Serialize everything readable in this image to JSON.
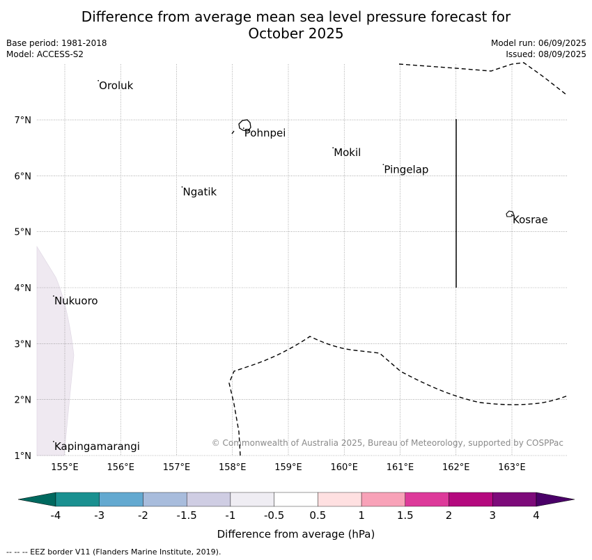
{
  "title_line1": "Difference from average mean sea level pressure forecast for",
  "title_line2": "October 2025",
  "meta": {
    "base_period": "Base period: 1981-2018",
    "model": "Model: ACCESS-S2",
    "model_run": "Model run: 06/09/2025",
    "issued": "Issued: 08/09/2025"
  },
  "map": {
    "lon_ticks": [
      "155°E",
      "156°E",
      "157°E",
      "158°E",
      "159°E",
      "160°E",
      "161°E",
      "162°E",
      "163°E"
    ],
    "lat_ticks": [
      "7°N",
      "6°N",
      "5°N",
      "4°N",
      "3°N",
      "2°N",
      "1°N"
    ],
    "places": [
      {
        "name": "Oroluk",
        "lon": 155.6,
        "lat": 7.7
      },
      {
        "name": "Pohnpei",
        "lon": 158.2,
        "lat": 6.85
      },
      {
        "name": "Mokil",
        "lon": 159.8,
        "lat": 6.5
      },
      {
        "name": "Pingelap",
        "lon": 160.7,
        "lat": 6.2
      },
      {
        "name": "Ngatik",
        "lon": 157.1,
        "lat": 5.8
      },
      {
        "name": "Kosrae",
        "lon": 163.0,
        "lat": 5.3
      },
      {
        "name": "Nukuoro",
        "lon": 154.8,
        "lat": 3.85
      },
      {
        "name": "Kapingamarangi",
        "lon": 154.8,
        "lat": 1.25
      }
    ],
    "copyright": "© Commonwealth of Australia 2025, Bureau of Meteorology, supported by COSPPac"
  },
  "colorbar": {
    "label": "Difference from average (hPa)",
    "ticks": [
      "-4",
      "-3",
      "-2",
      "-1.5",
      "-1",
      "-0.5",
      "0.5",
      "1",
      "1.5",
      "2",
      "3",
      "4"
    ],
    "colors": [
      "#1a9090",
      "#63a9d0",
      "#a8bcdc",
      "#cfcde3",
      "#efedf3",
      "#ffffff",
      "#ffe0e1",
      "#f8a2b8",
      "#dd3a9a",
      "#b4097e",
      "#7d0a7a"
    ],
    "under_color": "#00695f",
    "over_color": "#4a0068"
  },
  "footer": "--  --  -- EEZ border V11 (Flanders Marine Institute, 2019)."
}
